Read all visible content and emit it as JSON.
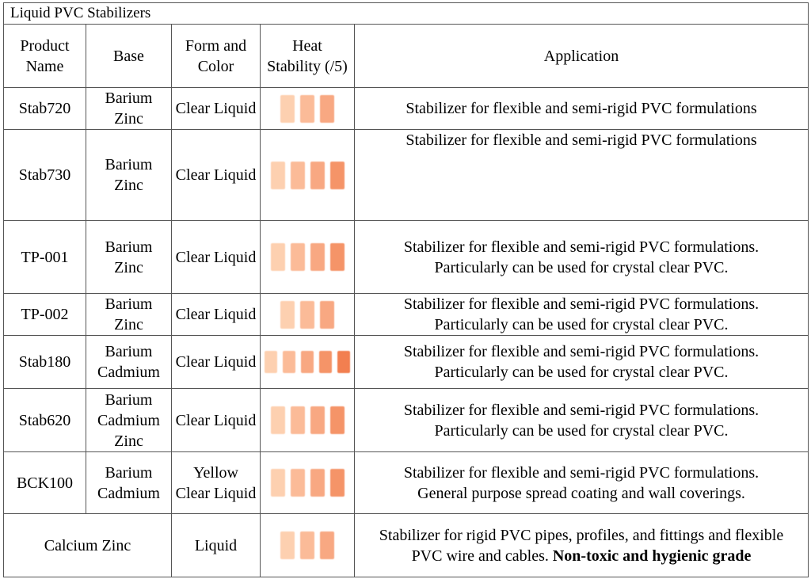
{
  "title": "Liquid PVC Stabilizers",
  "headers": {
    "name": "Product Name",
    "base": "Base",
    "form": "Form and Color",
    "heat": "Heat Stability (/5)",
    "app": "Application"
  },
  "heat_colors": [
    "#fdd0b0",
    "#fbbb98",
    "#f8a882",
    "#f59468",
    "#f27f50"
  ],
  "rows": [
    {
      "name": "Stab720",
      "base": "Barium Zinc",
      "form": "Clear Liquid",
      "heat": 3,
      "app": "Stabilizer for flexible and semi-rigid PVC formulations",
      "app2": ""
    },
    {
      "name": "Stab730",
      "base": "Barium Zinc",
      "form": "Clear Liquid",
      "heat": 4,
      "app": "Stabilizer for flexible and semi-rigid PVC formulations",
      "app2": ""
    },
    {
      "name": "TP-001",
      "base": "Barium Zinc",
      "form": "Clear Liquid",
      "heat": 4,
      "app": "Stabilizer for flexible and semi-rigid PVC formulations.",
      "app2": "Particularly can be used for crystal clear PVC."
    },
    {
      "name": "TP-002",
      "base": "Barium Zinc",
      "form": "Clear Liquid",
      "heat": 3,
      "app": "Stabilizer for flexible and semi-rigid PVC formulations.",
      "app2": "Particularly can be used for crystal clear PVC."
    },
    {
      "name": "Stab180",
      "base": "Barium Cadmium",
      "form": "Clear Liquid",
      "heat": 5,
      "app": "Stabilizer for flexible and semi-rigid PVC formulations.",
      "app2": "Particularly can be used for crystal clear PVC."
    },
    {
      "name": "Stab620",
      "base": "Barium Cadmium Zinc",
      "form": "Clear Liquid",
      "heat": 4,
      "app": "Stabilizer for flexible and semi-rigid PVC formulations.",
      "app2": "Particularly can be used for crystal clear PVC."
    },
    {
      "name": "BCK100",
      "base": "Barium Cadmium",
      "form": "Yellow Clear Liquid",
      "heat": 4,
      "app": "Stabilizer for flexible and semi-rigid PVC formulations.",
      "app2": "General purpose spread coating and wall coverings."
    }
  ],
  "last": {
    "name": "Calcium Zinc",
    "form": "Liquid",
    "heat": 3,
    "app": "Stabilizer for rigid PVC pipes, profiles, and fittings and flexible PVC wire and cables.",
    "app_bold": "Non-toxic and hygienic grade"
  }
}
